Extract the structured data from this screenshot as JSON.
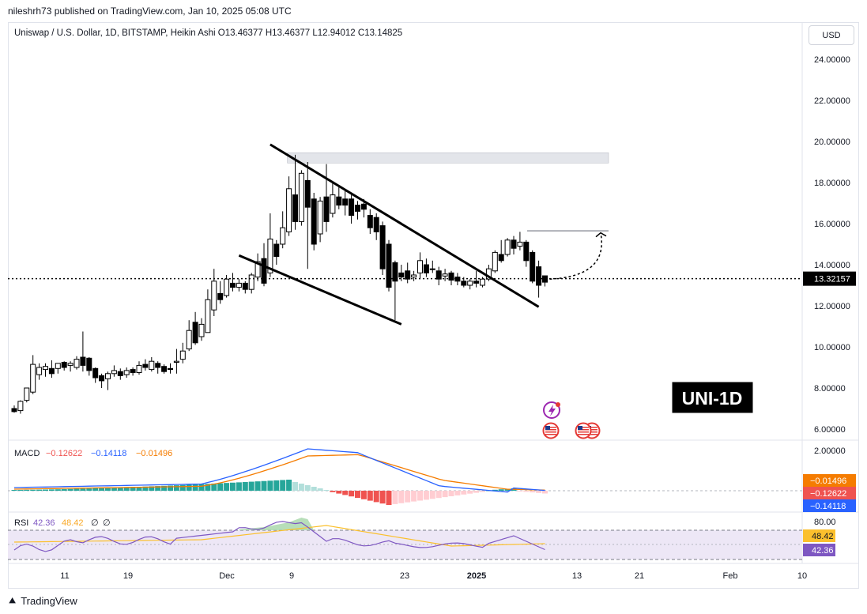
{
  "header": {
    "published": "nileshrh73 published on TradingView.com, Jan 10, 2025 05:08 UTC",
    "symbol_line": "Uniswap / U.S. Dollar, 1D, BITSTAMP, Heikin Ashi  O13.46377  H13.46377  L12.94012  C13.14825",
    "currency_button": "USD"
  },
  "chart_data": {
    "type": "candlestick",
    "title": "Uniswap / U.S. Dollar, 1D, BITSTAMP, Heikin Ashi",
    "ohlc_last": {
      "open": 13.46377,
      "high": 13.46377,
      "low": 12.94012,
      "close": 13.14825
    },
    "price_axis_ticks": [
      "24.00000",
      "22.00000",
      "20.00000",
      "18.00000",
      "16.00000",
      "14.00000",
      "12.00000",
      "10.00000",
      "8.00000",
      "6.00000"
    ],
    "price_axis_values": [
      24,
      22,
      20,
      18,
      16,
      14,
      12,
      10,
      8,
      6
    ],
    "current_price": 13.32157,
    "current_price_label": "13.32157",
    "time_ticks": [
      "11",
      "19",
      "Dec",
      "9",
      "23",
      "2025",
      "13",
      "21",
      "Feb",
      "10"
    ],
    "candles": [
      [
        0,
        7.0,
        6.85,
        7.15,
        6.8
      ],
      [
        1,
        6.9,
        7.35,
        7.4,
        6.75
      ],
      [
        2,
        7.4,
        8.0,
        8.0,
        7.3
      ],
      [
        3,
        7.8,
        9.15,
        9.6,
        7.7
      ],
      [
        4,
        8.65,
        9.0,
        9.2,
        8.4
      ],
      [
        5,
        8.9,
        9.05,
        9.2,
        8.55
      ],
      [
        6,
        8.95,
        8.7,
        9.35,
        8.5
      ],
      [
        7,
        8.95,
        9.2,
        9.2,
        8.7
      ],
      [
        8,
        9.25,
        9.0,
        9.3,
        8.85
      ],
      [
        9,
        9.1,
        9.2,
        9.3,
        8.8
      ],
      [
        10,
        9.0,
        9.4,
        9.55,
        8.9
      ],
      [
        11,
        9.5,
        9.1,
        10.75,
        8.8
      ],
      [
        12,
        9.45,
        8.85,
        9.5,
        8.6
      ],
      [
        13,
        8.95,
        8.5,
        9.0,
        8.25
      ],
      [
        14,
        8.6,
        8.35,
        8.7,
        8.0
      ],
      [
        15,
        8.45,
        8.7,
        8.8,
        7.9
      ],
      [
        16,
        8.7,
        8.85,
        9.1,
        8.55
      ],
      [
        17,
        8.8,
        8.6,
        8.95,
        8.4
      ],
      [
        18,
        8.65,
        8.85,
        9.0,
        8.5
      ],
      [
        19,
        8.9,
        8.75,
        9.0,
        8.6
      ],
      [
        20,
        8.75,
        9.1,
        9.3,
        8.65
      ],
      [
        21,
        9.15,
        9.0,
        9.4,
        8.85
      ],
      [
        22,
        8.9,
        9.3,
        9.5,
        8.8
      ],
      [
        23,
        9.2,
        9.0,
        9.3,
        8.7
      ],
      [
        24,
        9.05,
        8.8,
        9.15,
        8.7
      ],
      [
        25,
        8.95,
        8.9,
        9.2,
        8.7
      ],
      [
        26,
        9.25,
        9.3,
        9.9,
        8.7
      ],
      [
        27,
        9.4,
        9.8,
        10.2,
        9.2
      ],
      [
        28,
        9.9,
        10.8,
        11.3,
        9.8
      ],
      [
        29,
        11.2,
        10.2,
        11.7,
        10.1
      ],
      [
        30,
        10.5,
        11.1,
        11.4,
        10.3
      ],
      [
        31,
        10.7,
        12.3,
        12.8,
        10.7
      ],
      [
        32,
        11.8,
        13.2,
        13.8,
        11.5
      ],
      [
        33,
        12.6,
        12.3,
        13.2,
        12.1
      ],
      [
        34,
        12.5,
        13.3,
        13.5,
        12.4
      ],
      [
        35,
        13.1,
        12.9,
        13.6,
        12.7
      ],
      [
        36,
        12.9,
        13.1,
        13.3,
        12.7
      ],
      [
        37,
        13.1,
        12.8,
        13.2,
        12.6
      ],
      [
        38,
        12.8,
        13.5,
        13.6,
        12.6
      ],
      [
        39,
        13.4,
        14.15,
        14.55,
        13.2
      ],
      [
        40,
        14.3,
        13.1,
        15.05,
        12.95
      ],
      [
        41,
        13.6,
        15.25,
        16.5,
        13.4
      ],
      [
        42,
        15.0,
        14.4,
        15.2,
        14.0
      ],
      [
        43,
        15.0,
        15.8,
        16.6,
        14.8
      ],
      [
        44,
        15.6,
        17.7,
        18.3,
        15.4
      ],
      [
        45,
        17.4,
        16.1,
        19.35,
        15.7
      ],
      [
        46,
        16.1,
        18.45,
        18.6,
        15.9
      ],
      [
        47,
        18.1,
        16.8,
        19.0,
        13.8
      ],
      [
        48,
        17.2,
        15.0,
        17.5,
        14.7
      ],
      [
        49,
        15.5,
        17.1,
        17.3,
        15.1
      ],
      [
        50,
        17.3,
        16.1,
        18.9,
        15.6
      ],
      [
        51,
        16.5,
        17.4,
        18.0,
        16.3
      ],
      [
        52,
        17.3,
        16.9,
        17.8,
        16.7
      ],
      [
        53,
        17.2,
        16.9,
        17.6,
        16.4
      ],
      [
        54,
        17.2,
        16.4,
        17.4,
        16.0
      ],
      [
        55,
        16.9,
        16.6,
        17.1,
        16.2
      ],
      [
        56,
        16.95,
        16.7,
        17.2,
        16.3
      ],
      [
        57,
        16.4,
        15.8,
        16.7,
        15.5
      ],
      [
        58,
        16.3,
        15.6,
        16.5,
        15.2
      ],
      [
        59,
        15.9,
        13.8,
        16.1,
        13.5
      ],
      [
        60,
        15.0,
        12.9,
        15.2,
        12.7
      ],
      [
        61,
        14.1,
        13.2,
        14.2,
        11.3
      ],
      [
        62,
        13.6,
        13.4,
        14.0,
        13.2
      ],
      [
        63,
        13.7,
        13.3,
        14.1,
        13.1
      ],
      [
        64,
        13.4,
        13.5,
        13.7,
        13.2
      ],
      [
        65,
        13.6,
        14.2,
        14.6,
        13.3
      ],
      [
        66,
        14.0,
        13.6,
        14.3,
        13.4
      ],
      [
        67,
        13.8,
        13.8,
        14.2,
        13.6
      ],
      [
        68,
        13.7,
        13.3,
        13.9,
        13.0
      ],
      [
        69,
        13.45,
        13.55,
        13.8,
        13.2
      ],
      [
        70,
        13.6,
        13.25,
        13.7,
        13.0
      ],
      [
        71,
        13.4,
        13.2,
        13.6,
        13.0
      ],
      [
        72,
        13.2,
        13.0,
        13.4,
        12.9
      ],
      [
        73,
        13.0,
        13.2,
        13.3,
        12.8
      ],
      [
        74,
        13.2,
        13.1,
        13.7,
        12.9
      ],
      [
        75,
        13.0,
        13.3,
        13.4,
        12.9
      ],
      [
        76,
        13.3,
        13.8,
        14.0,
        13.2
      ],
      [
        77,
        13.7,
        14.6,
        14.7,
        13.6
      ],
      [
        78,
        14.5,
        14.2,
        15.2,
        14.1
      ],
      [
        79,
        14.5,
        15.2,
        15.3,
        14.4
      ],
      [
        80,
        15.2,
        14.8,
        15.4,
        14.5
      ],
      [
        81,
        14.9,
        15.1,
        15.6,
        14.7
      ],
      [
        82,
        15.1,
        14.2,
        15.2,
        13.9
      ],
      [
        83,
        14.6,
        13.2,
        14.7,
        13.1
      ],
      [
        84,
        13.9,
        13.0,
        14.2,
        12.4
      ],
      [
        85,
        13.46,
        13.15,
        13.46,
        12.94
      ]
    ],
    "channel_upper": [
      [
        41,
        19.85
      ],
      [
        84,
        11.95
      ]
    ],
    "channel_lower": [
      [
        36,
        14.45
      ],
      [
        62,
        11.1
      ]
    ],
    "resistance_zone": [
      18.95,
      19.45
    ],
    "target_level": 15.65,
    "overlay_label": "UNI-1D",
    "macd": {
      "label": "MACD",
      "values": [
        "−0.12622",
        "−0.14118",
        "−0.01496"
      ],
      "axis_tick": "2.00000",
      "badges": [
        "−0.01496",
        "−0.12622",
        "−0.14118"
      ],
      "colors": {
        "macd_line": "#2962ff",
        "signal_line": "#f57c00",
        "hist_pos": "#26a69a",
        "hist_pos_light": "#b2dfdb",
        "hist_neg": "#ef5350",
        "hist_neg_light": "#ffcdd2"
      }
    },
    "rsi": {
      "label": "RSI",
      "values": [
        "42.36",
        "48.42",
        "∅",
        "∅"
      ],
      "axis_tick": "80.00",
      "badges": [
        "48.42",
        "42.36"
      ],
      "colors": {
        "rsi_line": "#7e57c2",
        "ma_line": "#fbc02d",
        "band": "#ede7f6"
      }
    }
  },
  "footer": {
    "brand": "TradingView"
  }
}
